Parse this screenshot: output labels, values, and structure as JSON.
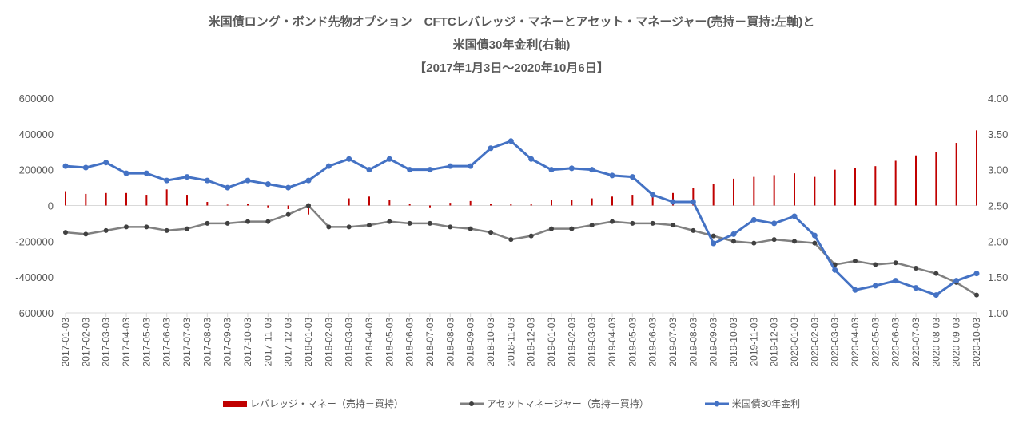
{
  "chart_data": {
    "type": "bar+line",
    "title_lines": [
      "米国債ロング・ボンド先物オプション　CFTCレバレッジ・マネーとアセット・マネージャー(売持－買持:左軸)と",
      "米国債30年金利(右軸)",
      "【2017年1月3日～2020年10月6日】"
    ],
    "x": [
      "2017-01-03",
      "2017-02-03",
      "2017-03-03",
      "2017-04-03",
      "2017-05-03",
      "2017-06-03",
      "2017-07-03",
      "2017-08-03",
      "2017-09-03",
      "2017-10-03",
      "2017-11-03",
      "2017-12-03",
      "2018-01-03",
      "2018-02-03",
      "2018-03-03",
      "2018-04-03",
      "2018-05-03",
      "2018-06-03",
      "2018-07-03",
      "2018-08-03",
      "2018-09-03",
      "2018-10-03",
      "2018-11-03",
      "2018-12-03",
      "2019-01-03",
      "2019-02-03",
      "2019-03-03",
      "2019-04-03",
      "2019-05-03",
      "2019-06-03",
      "2019-07-03",
      "2019-08-03",
      "2019-09-03",
      "2019-10-03",
      "2019-11-03",
      "2019-12-03",
      "2020-01-03",
      "2020-02-03",
      "2020-03-03",
      "2020-04-03",
      "2020-05-03",
      "2020-06-03",
      "2020-07-03",
      "2020-08-03",
      "2020-09-03",
      "2020-10-03"
    ],
    "y_left": {
      "range": [
        -600000,
        600000
      ],
      "ticks": [
        "600000",
        "400000",
        "200000",
        "0",
        "-200000",
        "-400000",
        "-600000"
      ]
    },
    "y_right": {
      "range": [
        1.0,
        4.0
      ],
      "ticks": [
        "4.00",
        "3.50",
        "3.00",
        "2.50",
        "2.00",
        "1.50",
        "1.00"
      ]
    },
    "series": [
      {
        "name": "レバレッジ・マネー（売持－買持）",
        "type": "bar",
        "axis": "left",
        "color": "#C00000",
        "values": [
          80000,
          65000,
          70000,
          70000,
          60000,
          90000,
          60000,
          20000,
          5000,
          10000,
          -10000,
          -20000,
          -50000,
          0,
          40000,
          50000,
          30000,
          10000,
          -10000,
          15000,
          25000,
          10000,
          10000,
          10000,
          30000,
          30000,
          40000,
          50000,
          60000,
          50000,
          70000,
          100000,
          120000,
          150000,
          160000,
          170000,
          180000,
          160000,
          200000,
          210000,
          220000,
          250000,
          280000,
          300000,
          350000,
          420000
        ]
      },
      {
        "name": "アセットマネージャー（売持－買持）",
        "type": "line",
        "axis": "left",
        "color": "#808080",
        "values": [
          -150000,
          -160000,
          -140000,
          -120000,
          -120000,
          -140000,
          -130000,
          -100000,
          -100000,
          -90000,
          -90000,
          -50000,
          0,
          -120000,
          -120000,
          -110000,
          -90000,
          -100000,
          -100000,
          -120000,
          -130000,
          -150000,
          -190000,
          -170000,
          -130000,
          -130000,
          -110000,
          -90000,
          -100000,
          -100000,
          -110000,
          -140000,
          -170000,
          -200000,
          -210000,
          -190000,
          -200000,
          -210000,
          -330000,
          -310000,
          -330000,
          -320000,
          -350000,
          -380000,
          -430000,
          -500000
        ]
      },
      {
        "name": "米国債30年金利",
        "type": "line",
        "axis": "right",
        "color": "#4472C4",
        "values": [
          3.05,
          3.03,
          3.1,
          2.95,
          2.95,
          2.85,
          2.9,
          2.85,
          2.75,
          2.85,
          2.8,
          2.75,
          2.85,
          3.05,
          3.15,
          3.0,
          3.15,
          3.0,
          3.0,
          3.05,
          3.05,
          3.3,
          3.4,
          3.15,
          3.0,
          3.02,
          3.0,
          2.92,
          2.9,
          2.65,
          2.55,
          2.55,
          1.97,
          2.1,
          2.3,
          2.25,
          2.35,
          2.08,
          1.6,
          1.32,
          1.38,
          1.45,
          1.35,
          1.25,
          1.45,
          1.55
        ]
      }
    ],
    "legend_position": "bottom",
    "grid": false
  }
}
